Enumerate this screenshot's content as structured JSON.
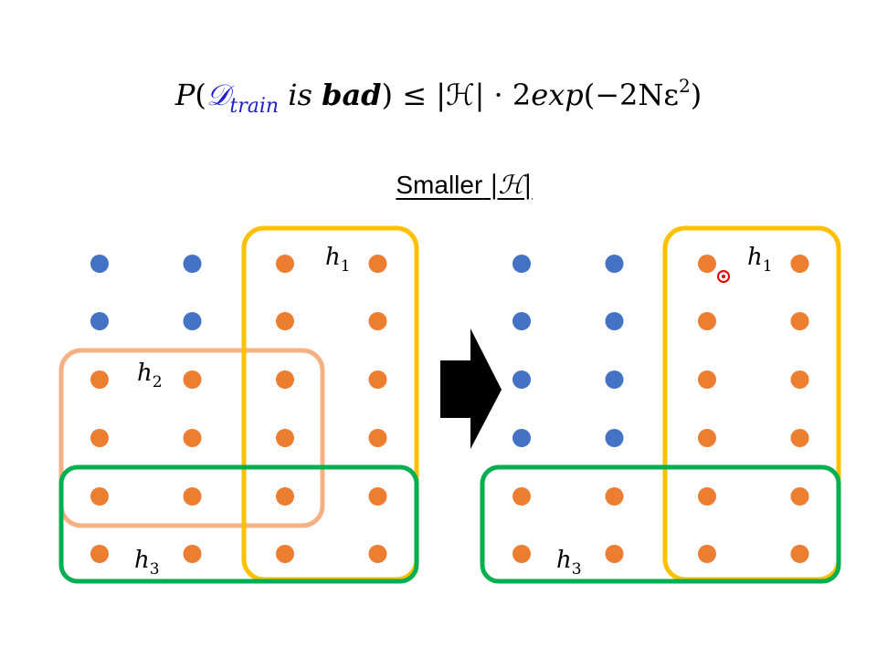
{
  "formula": {
    "p": "P",
    "open": "(",
    "d": "𝒟",
    "train": "train",
    "is": "is",
    "bad": "bad",
    "close": ")",
    "leq": "≤",
    "hset": "|ℋ|",
    "dot": "·",
    "rest_a": "2",
    "rest_b": "exp",
    "rest_c": "(−2Nε",
    "sq": "2",
    "rest_d": ")"
  },
  "subtitle": {
    "text": "Smaller",
    "math": "|ℋ|"
  },
  "left_panel": {
    "labels": {
      "h1": "h",
      "h1_sub": "1",
      "h2": "h",
      "h2_sub": "2",
      "h3": "h",
      "h3_sub": "3"
    },
    "dots": [
      [
        "blue",
        "blue",
        "orange",
        "orange"
      ],
      [
        "blue",
        "blue",
        "orange",
        "orange"
      ],
      [
        "orange",
        "orange",
        "orange",
        "orange"
      ],
      [
        "orange",
        "orange",
        "orange",
        "orange"
      ],
      [
        "orange",
        "orange",
        "orange",
        "orange"
      ],
      [
        "orange",
        "orange",
        "orange",
        "orange"
      ]
    ]
  },
  "right_panel": {
    "labels": {
      "h1": "h",
      "h1_sub": "1",
      "h3": "h",
      "h3_sub": "3"
    },
    "dots": [
      [
        "blue",
        "blue",
        "orange",
        "orange"
      ],
      [
        "blue",
        "blue",
        "orange",
        "orange"
      ],
      [
        "blue",
        "blue",
        "orange",
        "orange"
      ],
      [
        "blue",
        "blue",
        "orange",
        "orange"
      ],
      [
        "orange",
        "orange",
        "orange",
        "orange"
      ],
      [
        "orange",
        "orange",
        "orange",
        "orange"
      ]
    ]
  },
  "colors": {
    "blue_dot": "#4472c4",
    "orange_dot": "#ed7d31",
    "h1_box": "#ffc000",
    "h2_box": "#f4b183",
    "h3_box": "#00b050",
    "arrow": "#000000",
    "cursor": "#e00000"
  }
}
